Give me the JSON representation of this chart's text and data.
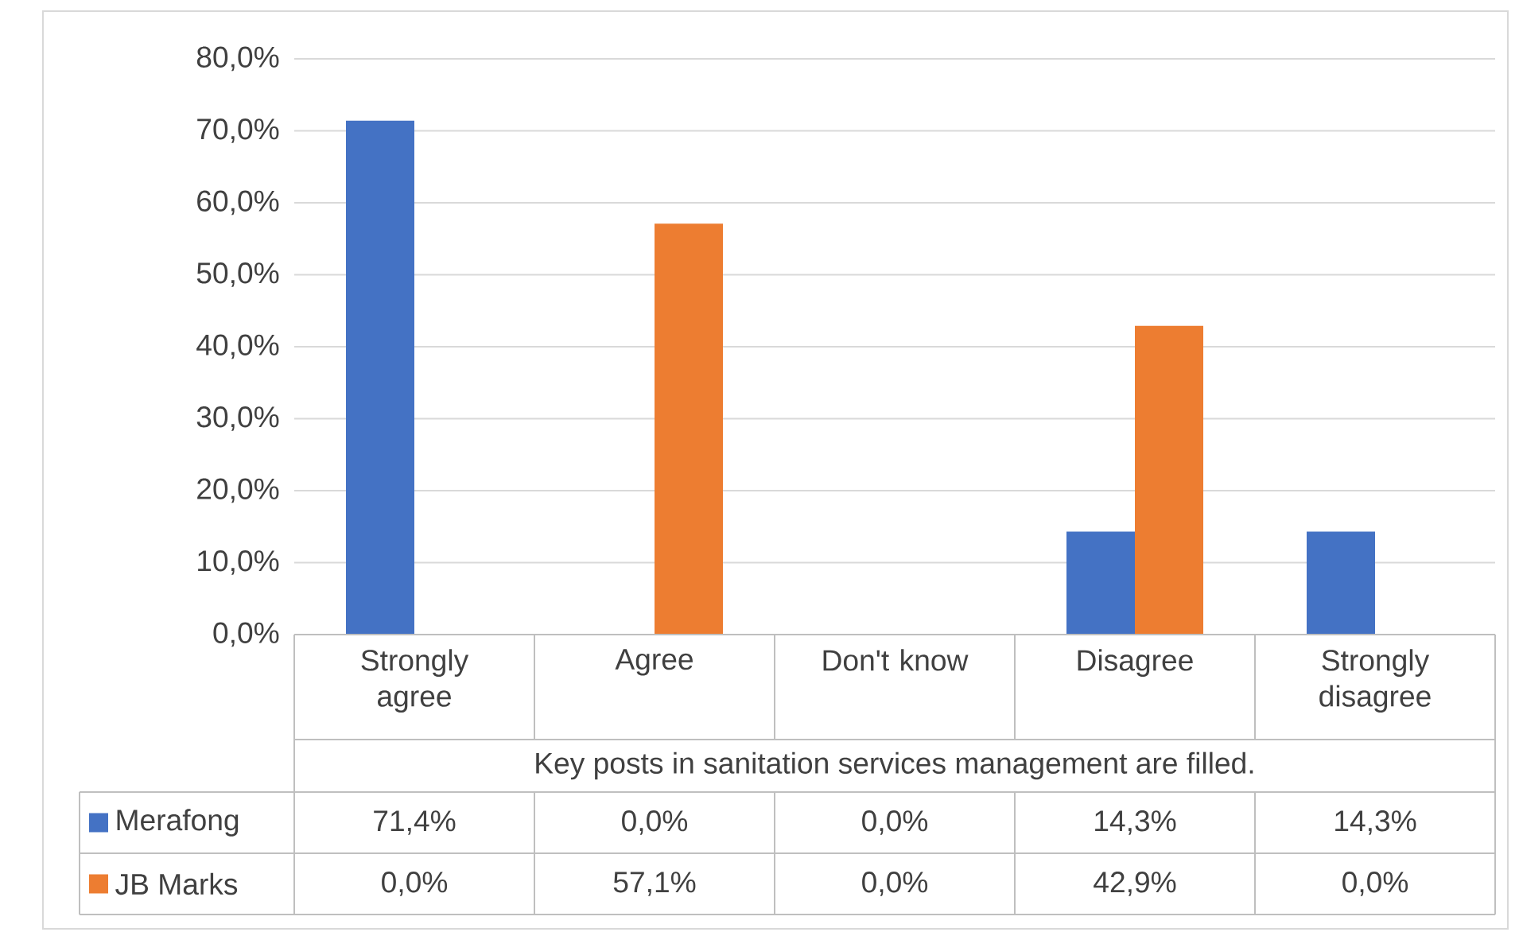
{
  "chart_data": {
    "type": "bar",
    "categories": [
      "Strongly agree",
      "Agree",
      "Don't know",
      "Disagree",
      "Strongly disagree"
    ],
    "xlabel": "Key posts in sanitation services management are filled.",
    "series": [
      {
        "name": "Merafong",
        "color": "#4472c4",
        "values": [
          71.4,
          0.0,
          0.0,
          14.3,
          14.3
        ],
        "value_labels": [
          "71,4%",
          "0,0%",
          "0,0%",
          "14,3%",
          "14,3%"
        ]
      },
      {
        "name": "JB Marks",
        "color": "#ed7d31",
        "values": [
          0.0,
          57.1,
          0.0,
          42.9,
          0.0
        ],
        "value_labels": [
          "0,0%",
          "57,1%",
          "0,0%",
          "42,9%",
          "0,0%"
        ]
      }
    ],
    "ylim": [
      0,
      80
    ],
    "yticks": [
      {
        "value": 0,
        "label": "0,0%"
      },
      {
        "value": 10,
        "label": "10,0%"
      },
      {
        "value": 20,
        "label": "20,0%"
      },
      {
        "value": 30,
        "label": "30,0%"
      },
      {
        "value": 40,
        "label": "40,0%"
      },
      {
        "value": 50,
        "label": "50,0%"
      },
      {
        "value": 60,
        "label": "60,0%"
      },
      {
        "value": 70,
        "label": "70,0%"
      },
      {
        "value": 80,
        "label": "80,0%"
      }
    ],
    "grid": "y",
    "legend": "bottom"
  }
}
